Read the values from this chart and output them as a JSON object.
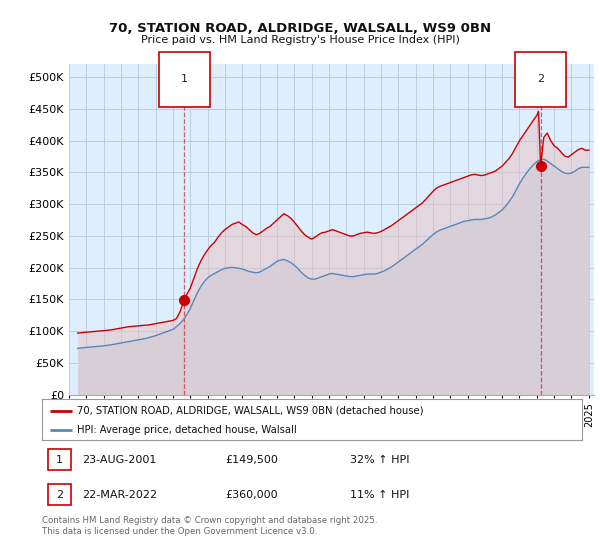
{
  "title_line1": "70, STATION ROAD, ALDRIDGE, WALSALL, WS9 0BN",
  "title_line2": "Price paid vs. HM Land Registry's House Price Index (HPI)",
  "xlim_start": 1995.5,
  "xlim_end": 2025.3,
  "ylim_min": 0,
  "ylim_max": 520000,
  "yticks": [
    0,
    50000,
    100000,
    150000,
    200000,
    250000,
    300000,
    350000,
    400000,
    450000,
    500000
  ],
  "ytick_labels": [
    "£0",
    "£50K",
    "£100K",
    "£150K",
    "£200K",
    "£250K",
    "£300K",
    "£350K",
    "£400K",
    "£450K",
    "£500K"
  ],
  "xticks": [
    1995,
    1996,
    1997,
    1998,
    1999,
    2000,
    2001,
    2002,
    2003,
    2004,
    2005,
    2006,
    2007,
    2008,
    2009,
    2010,
    2011,
    2012,
    2013,
    2014,
    2015,
    2016,
    2017,
    2018,
    2019,
    2020,
    2021,
    2022,
    2023,
    2024,
    2025
  ],
  "red_line_color": "#cc0000",
  "blue_line_color": "#5588bb",
  "chart_bg_color": "#ddeeff",
  "fig_bg_color": "#ffffff",
  "grid_color": "#bbccdd",
  "marker1_x": 2001.65,
  "marker1_y": 149500,
  "marker2_x": 2022.22,
  "marker2_y": 360000,
  "vline1_x": 2001.65,
  "vline2_x": 2022.22,
  "legend_label_red": "70, STATION ROAD, ALDRIDGE, WALSALL, WS9 0BN (detached house)",
  "legend_label_blue": "HPI: Average price, detached house, Walsall",
  "annotation1_date": "23-AUG-2001",
  "annotation1_price": "£149,500",
  "annotation1_hpi": "32% ↑ HPI",
  "annotation2_date": "22-MAR-2022",
  "annotation2_price": "£360,000",
  "annotation2_hpi": "11% ↑ HPI",
  "footer": "Contains HM Land Registry data © Crown copyright and database right 2025.\nThis data is licensed under the Open Government Licence v3.0.",
  "red_data": [
    [
      1995.5,
      97000
    ],
    [
      1995.6,
      97500
    ],
    [
      1995.8,
      98000
    ],
    [
      1996.0,
      98500
    ],
    [
      1996.2,
      99000
    ],
    [
      1996.4,
      99500
    ],
    [
      1996.6,
      100000
    ],
    [
      1996.8,
      100500
    ],
    [
      1997.0,
      101000
    ],
    [
      1997.2,
      101500
    ],
    [
      1997.4,
      102000
    ],
    [
      1997.6,
      103000
    ],
    [
      1997.8,
      104000
    ],
    [
      1998.0,
      105000
    ],
    [
      1998.2,
      106000
    ],
    [
      1998.4,
      107000
    ],
    [
      1998.6,
      107500
    ],
    [
      1998.8,
      108000
    ],
    [
      1999.0,
      108500
    ],
    [
      1999.2,
      109000
    ],
    [
      1999.4,
      109500
    ],
    [
      1999.6,
      110000
    ],
    [
      1999.8,
      111000
    ],
    [
      2000.0,
      112000
    ],
    [
      2000.2,
      113000
    ],
    [
      2000.4,
      114000
    ],
    [
      2000.6,
      115000
    ],
    [
      2000.8,
      116000
    ],
    [
      2001.0,
      117000
    ],
    [
      2001.2,
      120000
    ],
    [
      2001.4,
      130000
    ],
    [
      2001.65,
      149500
    ],
    [
      2001.8,
      158000
    ],
    [
      2002.0,
      168000
    ],
    [
      2002.2,
      183000
    ],
    [
      2002.4,
      198000
    ],
    [
      2002.6,
      210000
    ],
    [
      2002.8,
      220000
    ],
    [
      2003.0,
      228000
    ],
    [
      2003.2,
      235000
    ],
    [
      2003.4,
      240000
    ],
    [
      2003.6,
      248000
    ],
    [
      2003.8,
      255000
    ],
    [
      2004.0,
      260000
    ],
    [
      2004.2,
      264000
    ],
    [
      2004.4,
      268000
    ],
    [
      2004.6,
      270000
    ],
    [
      2004.8,
      272000
    ],
    [
      2005.0,
      268000
    ],
    [
      2005.2,
      265000
    ],
    [
      2005.4,
      260000
    ],
    [
      2005.6,
      255000
    ],
    [
      2005.8,
      252000
    ],
    [
      2006.0,
      254000
    ],
    [
      2006.2,
      258000
    ],
    [
      2006.4,
      262000
    ],
    [
      2006.6,
      265000
    ],
    [
      2006.8,
      270000
    ],
    [
      2007.0,
      275000
    ],
    [
      2007.2,
      280000
    ],
    [
      2007.4,
      285000
    ],
    [
      2007.6,
      282000
    ],
    [
      2007.8,
      278000
    ],
    [
      2008.0,
      272000
    ],
    [
      2008.2,
      265000
    ],
    [
      2008.4,
      258000
    ],
    [
      2008.6,
      252000
    ],
    [
      2008.8,
      248000
    ],
    [
      2009.0,
      245000
    ],
    [
      2009.2,
      248000
    ],
    [
      2009.4,
      252000
    ],
    [
      2009.6,
      255000
    ],
    [
      2009.8,
      256000
    ],
    [
      2010.0,
      258000
    ],
    [
      2010.2,
      260000
    ],
    [
      2010.4,
      258000
    ],
    [
      2010.6,
      256000
    ],
    [
      2010.8,
      254000
    ],
    [
      2011.0,
      252000
    ],
    [
      2011.2,
      250000
    ],
    [
      2011.4,
      250000
    ],
    [
      2011.6,
      252000
    ],
    [
      2011.8,
      254000
    ],
    [
      2012.0,
      255000
    ],
    [
      2012.2,
      256000
    ],
    [
      2012.4,
      255000
    ],
    [
      2012.6,
      254000
    ],
    [
      2012.8,
      255000
    ],
    [
      2013.0,
      257000
    ],
    [
      2013.2,
      260000
    ],
    [
      2013.4,
      263000
    ],
    [
      2013.6,
      266000
    ],
    [
      2013.8,
      270000
    ],
    [
      2014.0,
      274000
    ],
    [
      2014.2,
      278000
    ],
    [
      2014.4,
      282000
    ],
    [
      2014.6,
      286000
    ],
    [
      2014.8,
      290000
    ],
    [
      2015.0,
      294000
    ],
    [
      2015.2,
      298000
    ],
    [
      2015.4,
      302000
    ],
    [
      2015.6,
      308000
    ],
    [
      2015.8,
      314000
    ],
    [
      2016.0,
      320000
    ],
    [
      2016.2,
      325000
    ],
    [
      2016.4,
      328000
    ],
    [
      2016.6,
      330000
    ],
    [
      2016.8,
      332000
    ],
    [
      2017.0,
      334000
    ],
    [
      2017.2,
      336000
    ],
    [
      2017.4,
      338000
    ],
    [
      2017.6,
      340000
    ],
    [
      2017.8,
      342000
    ],
    [
      2018.0,
      344000
    ],
    [
      2018.2,
      346000
    ],
    [
      2018.4,
      347000
    ],
    [
      2018.6,
      346000
    ],
    [
      2018.8,
      345000
    ],
    [
      2019.0,
      346000
    ],
    [
      2019.2,
      348000
    ],
    [
      2019.4,
      350000
    ],
    [
      2019.6,
      352000
    ],
    [
      2019.8,
      356000
    ],
    [
      2020.0,
      360000
    ],
    [
      2020.2,
      366000
    ],
    [
      2020.4,
      372000
    ],
    [
      2020.6,
      380000
    ],
    [
      2020.8,
      390000
    ],
    [
      2021.0,
      400000
    ],
    [
      2021.2,
      408000
    ],
    [
      2021.4,
      416000
    ],
    [
      2021.6,
      424000
    ],
    [
      2021.8,
      432000
    ],
    [
      2022.0,
      440000
    ],
    [
      2022.1,
      446000
    ],
    [
      2022.22,
      360000
    ],
    [
      2022.4,
      405000
    ],
    [
      2022.6,
      412000
    ],
    [
      2022.8,
      400000
    ],
    [
      2023.0,
      392000
    ],
    [
      2023.2,
      388000
    ],
    [
      2023.4,
      382000
    ],
    [
      2023.6,
      376000
    ],
    [
      2023.8,
      374000
    ],
    [
      2024.0,
      378000
    ],
    [
      2024.2,
      382000
    ],
    [
      2024.4,
      386000
    ],
    [
      2024.6,
      388000
    ],
    [
      2024.8,
      385000
    ],
    [
      2025.0,
      385000
    ]
  ],
  "blue_data": [
    [
      1995.5,
      73000
    ],
    [
      1995.6,
      73500
    ],
    [
      1995.8,
      74000
    ],
    [
      1996.0,
      74500
    ],
    [
      1996.2,
      75000
    ],
    [
      1996.4,
      75500
    ],
    [
      1996.6,
      76000
    ],
    [
      1996.8,
      76500
    ],
    [
      1997.0,
      77000
    ],
    [
      1997.2,
      77800
    ],
    [
      1997.4,
      78500
    ],
    [
      1997.6,
      79500
    ],
    [
      1997.8,
      80500
    ],
    [
      1998.0,
      81500
    ],
    [
      1998.2,
      82500
    ],
    [
      1998.4,
      83500
    ],
    [
      1998.6,
      84500
    ],
    [
      1998.8,
      85500
    ],
    [
      1999.0,
      86500
    ],
    [
      1999.2,
      87500
    ],
    [
      1999.4,
      88500
    ],
    [
      1999.6,
      90000
    ],
    [
      1999.8,
      91500
    ],
    [
      2000.0,
      93000
    ],
    [
      2000.2,
      95000
    ],
    [
      2000.4,
      97000
    ],
    [
      2000.6,
      99000
    ],
    [
      2000.8,
      101000
    ],
    [
      2001.0,
      103000
    ],
    [
      2001.2,
      107000
    ],
    [
      2001.4,
      112000
    ],
    [
      2001.6,
      118000
    ],
    [
      2001.8,
      126000
    ],
    [
      2002.0,
      136000
    ],
    [
      2002.2,
      148000
    ],
    [
      2002.4,
      160000
    ],
    [
      2002.6,
      170000
    ],
    [
      2002.8,
      178000
    ],
    [
      2003.0,
      184000
    ],
    [
      2003.2,
      188000
    ],
    [
      2003.4,
      191000
    ],
    [
      2003.6,
      194000
    ],
    [
      2003.8,
      197000
    ],
    [
      2004.0,
      199000
    ],
    [
      2004.2,
      200000
    ],
    [
      2004.4,
      200500
    ],
    [
      2004.6,
      200000
    ],
    [
      2004.8,
      199000
    ],
    [
      2005.0,
      198000
    ],
    [
      2005.2,
      196000
    ],
    [
      2005.4,
      194000
    ],
    [
      2005.6,
      193000
    ],
    [
      2005.8,
      192000
    ],
    [
      2006.0,
      193000
    ],
    [
      2006.2,
      196000
    ],
    [
      2006.4,
      199000
    ],
    [
      2006.6,
      202000
    ],
    [
      2006.8,
      206000
    ],
    [
      2007.0,
      210000
    ],
    [
      2007.2,
      212000
    ],
    [
      2007.4,
      213000
    ],
    [
      2007.6,
      211000
    ],
    [
      2007.8,
      208000
    ],
    [
      2008.0,
      204000
    ],
    [
      2008.2,
      199000
    ],
    [
      2008.4,
      193000
    ],
    [
      2008.6,
      188000
    ],
    [
      2008.8,
      184000
    ],
    [
      2009.0,
      182000
    ],
    [
      2009.2,
      182000
    ],
    [
      2009.4,
      184000
    ],
    [
      2009.6,
      186000
    ],
    [
      2009.8,
      188000
    ],
    [
      2010.0,
      190000
    ],
    [
      2010.2,
      191000
    ],
    [
      2010.4,
      190000
    ],
    [
      2010.6,
      189000
    ],
    [
      2010.8,
      188000
    ],
    [
      2011.0,
      187000
    ],
    [
      2011.2,
      186000
    ],
    [
      2011.4,
      186000
    ],
    [
      2011.6,
      187000
    ],
    [
      2011.8,
      188000
    ],
    [
      2012.0,
      189000
    ],
    [
      2012.2,
      190000
    ],
    [
      2012.4,
      190000
    ],
    [
      2012.6,
      190000
    ],
    [
      2012.8,
      191000
    ],
    [
      2013.0,
      193000
    ],
    [
      2013.2,
      195000
    ],
    [
      2013.4,
      198000
    ],
    [
      2013.6,
      201000
    ],
    [
      2013.8,
      205000
    ],
    [
      2014.0,
      209000
    ],
    [
      2014.2,
      213000
    ],
    [
      2014.4,
      217000
    ],
    [
      2014.6,
      221000
    ],
    [
      2014.8,
      225000
    ],
    [
      2015.0,
      229000
    ],
    [
      2015.2,
      233000
    ],
    [
      2015.4,
      237000
    ],
    [
      2015.6,
      242000
    ],
    [
      2015.8,
      247000
    ],
    [
      2016.0,
      252000
    ],
    [
      2016.2,
      256000
    ],
    [
      2016.4,
      259000
    ],
    [
      2016.6,
      261000
    ],
    [
      2016.8,
      263000
    ],
    [
      2017.0,
      265000
    ],
    [
      2017.2,
      267000
    ],
    [
      2017.4,
      269000
    ],
    [
      2017.6,
      271000
    ],
    [
      2017.8,
      273000
    ],
    [
      2018.0,
      274000
    ],
    [
      2018.2,
      275000
    ],
    [
      2018.4,
      276000
    ],
    [
      2018.6,
      276000
    ],
    [
      2018.8,
      276000
    ],
    [
      2019.0,
      277000
    ],
    [
      2019.2,
      278000
    ],
    [
      2019.4,
      280000
    ],
    [
      2019.6,
      283000
    ],
    [
      2019.8,
      287000
    ],
    [
      2020.0,
      291000
    ],
    [
      2020.2,
      297000
    ],
    [
      2020.4,
      304000
    ],
    [
      2020.6,
      312000
    ],
    [
      2020.8,
      322000
    ],
    [
      2021.0,
      332000
    ],
    [
      2021.2,
      341000
    ],
    [
      2021.4,
      349000
    ],
    [
      2021.6,
      356000
    ],
    [
      2021.8,
      362000
    ],
    [
      2022.0,
      367000
    ],
    [
      2022.2,
      370000
    ],
    [
      2022.4,
      371000
    ],
    [
      2022.6,
      368000
    ],
    [
      2022.8,
      364000
    ],
    [
      2023.0,
      360000
    ],
    [
      2023.2,
      356000
    ],
    [
      2023.4,
      352000
    ],
    [
      2023.6,
      349000
    ],
    [
      2023.8,
      348000
    ],
    [
      2024.0,
      349000
    ],
    [
      2024.2,
      352000
    ],
    [
      2024.4,
      356000
    ],
    [
      2024.6,
      358000
    ],
    [
      2024.8,
      358000
    ],
    [
      2025.0,
      358000
    ]
  ]
}
